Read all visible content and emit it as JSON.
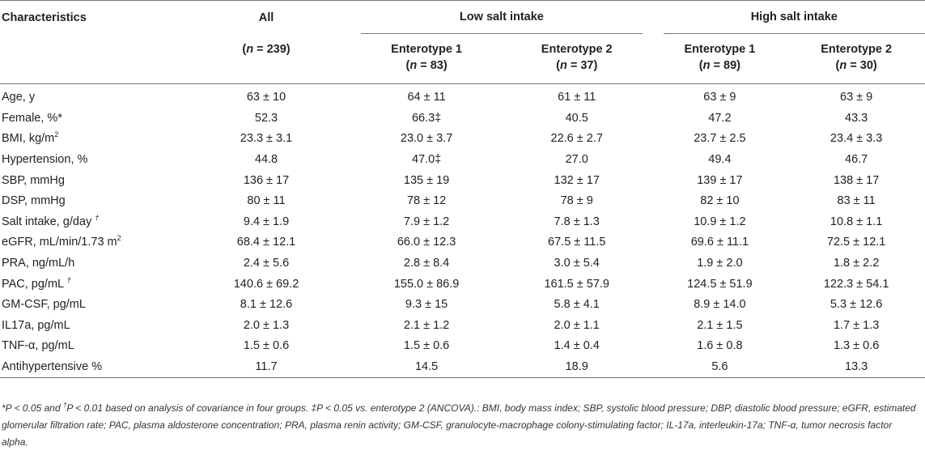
{
  "header": {
    "characteristics": "Characteristics",
    "all": "All",
    "low_salt": "Low salt intake",
    "high_salt": "High salt intake",
    "all_n": "(n = 239)",
    "low_e1": "Enterotype 1",
    "low_e1_n": "(n = 83)",
    "low_e2": "Enterotype 2",
    "low_e2_n": "(n = 37)",
    "high_e1": "Enterotype 1",
    "high_e1_n": "(n = 89)",
    "high_e2": "Enterotype 2",
    "high_e2_n": "(n = 30)"
  },
  "rows": [
    {
      "label": "Age, y",
      "sup": "",
      "all": "63 ± 10",
      "low_e1": "64 ± 11",
      "low_e2": "61 ± 11",
      "high_e1": "63 ± 9",
      "high_e2": "63 ± 9"
    },
    {
      "label": "Female, %*",
      "sup": "",
      "all": "52.3",
      "low_e1": "66.3‡",
      "low_e2": "40.5",
      "high_e1": "47.2",
      "high_e2": "43.3"
    },
    {
      "label": "BMI, kg/m",
      "sup": "2",
      "all": "23.3 ± 3.1",
      "low_e1": "23.0 ± 3.7",
      "low_e2": "22.6 ± 2.7",
      "high_e1": "23.7 ± 2.5",
      "high_e2": "23.4 ± 3.3"
    },
    {
      "label": "Hypertension, %",
      "sup": "",
      "all": "44.8",
      "low_e1": "47.0‡",
      "low_e2": "27.0",
      "high_e1": "49.4",
      "high_e2": "46.7"
    },
    {
      "label": "SBP, mmHg",
      "sup": "",
      "all": "136 ± 17",
      "low_e1": "135 ± 19",
      "low_e2": "132 ± 17",
      "high_e1": "139 ± 17",
      "high_e2": "138 ± 17"
    },
    {
      "label": "DSP, mmHg",
      "sup": "",
      "all": "80 ± 11",
      "low_e1": "78 ± 12",
      "low_e2": "78 ± 9",
      "high_e1": "82 ± 10",
      "high_e2": "83 ± 11"
    },
    {
      "label": "Salt intake, g/day ",
      "sup": "†",
      "all": "9.4 ± 1.9",
      "low_e1": "7.9 ± 1.2",
      "low_e2": "7.8 ± 1.3",
      "high_e1": "10.9 ± 1.2",
      "high_e2": "10.8 ± 1.1"
    },
    {
      "label": "eGFR, mL/min/1.73 m",
      "sup": "2",
      "all": "68.4 ± 12.1",
      "low_e1": "66.0 ± 12.3",
      "low_e2": "67.5 ± 11.5",
      "high_e1": "69.6 ± 11.1",
      "high_e2": "72.5 ± 12.1"
    },
    {
      "label": "PRA, ng/mL/h",
      "sup": "",
      "all": "2.4 ± 5.6",
      "low_e1": "2.8 ± 8.4",
      "low_e2": "3.0 ± 5.4",
      "high_e1": "1.9 ± 2.0",
      "high_e2": "1.8 ± 2.2"
    },
    {
      "label": "PAC, pg/mL ",
      "sup": "†",
      "all": "140.6 ± 69.2",
      "low_e1": "155.0 ± 86.9",
      "low_e2": "161.5 ± 57.9",
      "high_e1": "124.5 ± 51.9",
      "high_e2": "122.3 ± 54.1"
    },
    {
      "label": "GM-CSF, pg/mL",
      "sup": "",
      "all": "8.1 ± 12.6",
      "low_e1": "9.3 ± 15",
      "low_e2": "5.8 ± 4.1",
      "high_e1": "8.9 ± 14.0",
      "high_e2": "5.3 ± 12.6"
    },
    {
      "label": "IL17a, pg/mL",
      "sup": "",
      "all": "2.0 ± 1.3",
      "low_e1": "2.1 ± 1.2",
      "low_e2": "2.0 ± 1.1",
      "high_e1": "2.1 ± 1.5",
      "high_e2": "1.7 ± 1.3"
    },
    {
      "label": "TNF-α, pg/mL",
      "sup": "",
      "all": "1.5 ± 0.6",
      "low_e1": "1.5 ± 0.6",
      "low_e2": "1.4 ± 0.4",
      "high_e1": "1.6 ± 0.8",
      "high_e2": "1.3 ± 0.6"
    },
    {
      "label": "Antihypertensive %",
      "sup": "",
      "all": "11.7",
      "low_e1": "14.5",
      "low_e2": "18.9",
      "high_e1": "5.6",
      "high_e2": "13.3"
    }
  ],
  "footnote": {
    "part1": "*P < 0.05 and ",
    "sup": "†",
    "part2": "P < 0.01 based on analysis of covariance in four groups. ‡P < 0.05 vs. enterotype 2 (ANCOVA).: BMI, body mass index; SBP, systolic blood pressure; DBP, diastolic blood pressure; eGFR, estimated glomerular filtration rate; PAC, plasma aldosterone concentration; PRA, plasma renin activity; GM-CSF, granulocyte-macrophage colony-stimulating factor; IL-17a, interleukin-17a; TNF-α, tumor necrosis factor alpha."
  }
}
